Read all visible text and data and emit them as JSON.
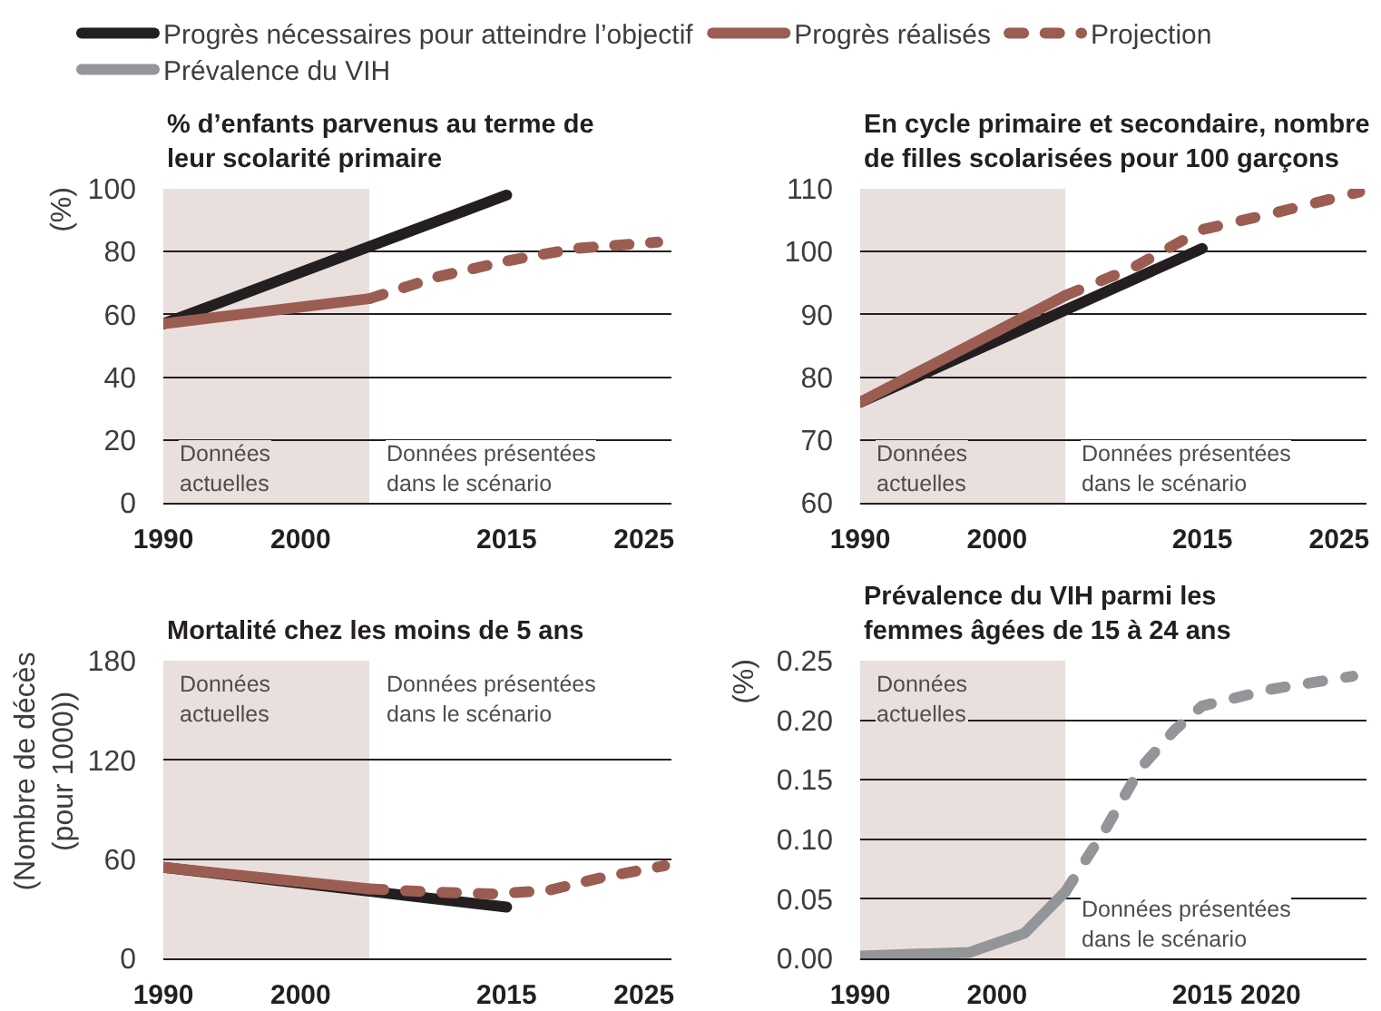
{
  "chart_data": [
    {
      "type": "line",
      "title": "% d’enfants parvenus au terme de\nleur scolarité primaire",
      "ylabel": "(%)",
      "xlim": [
        1990,
        2027
      ],
      "xticks": [
        1990,
        2000,
        2015,
        2025
      ],
      "ylim": [
        0,
        100
      ],
      "yticks": [
        0,
        20,
        40,
        60,
        80,
        100
      ],
      "grid": "y",
      "legend": "top",
      "bands": [
        {
          "axis": "x",
          "from": 1990,
          "to": 2005,
          "color": "#e9e0dd",
          "label": "Données\nactuelles"
        }
      ],
      "annotations": [
        "Données présentées\ndans le scénario"
      ],
      "series": [
        {
          "name": "Progrès nécessaires pour atteindre l’objectif",
          "color": "#231f20",
          "line_style": "solid",
          "x": [
            1990,
            2015
          ],
          "values": [
            57,
            98
          ]
        },
        {
          "name": "Progrès réalisés",
          "color": "#9b5c52",
          "line_style": "solid",
          "x": [
            1990,
            2005
          ],
          "values": [
            57,
            65
          ]
        },
        {
          "name": "Projection",
          "color": "#9b5c52",
          "line_style": "dashed",
          "x": [
            2005,
            2010,
            2015,
            2020,
            2026
          ],
          "values": [
            65,
            72,
            77,
            81,
            83
          ]
        }
      ]
    },
    {
      "type": "line",
      "title": "En cycle primaire et secondaire, nombre\nde filles scolarisées pour 100 garçons",
      "xlim": [
        1990,
        2027
      ],
      "xticks": [
        1990,
        2000,
        2015,
        2025
      ],
      "ylim": [
        60,
        110
      ],
      "yticks": [
        60,
        70,
        80,
        90,
        100,
        110
      ],
      "grid": "y",
      "bands": [
        {
          "axis": "x",
          "from": 1990,
          "to": 2005,
          "color": "#e9e0dd",
          "label": "Données\nactuelles"
        }
      ],
      "annotations": [
        "Données présentées\ndans le scénario"
      ],
      "series": [
        {
          "color": "#231f20",
          "line_style": "solid",
          "x": [
            1990,
            2015
          ],
          "values": [
            76,
            100.5
          ]
        },
        {
          "color": "#9b5c52",
          "line_style": "solid",
          "x": [
            1990,
            2005
          ],
          "values": [
            76,
            93
          ]
        },
        {
          "color": "#9b5c52",
          "line_style": "dashed",
          "x": [
            2005,
            2010,
            2015,
            2020,
            2026.5
          ],
          "values": [
            93,
            97.5,
            103.5,
            106,
            109.5
          ]
        }
      ]
    },
    {
      "type": "line",
      "title": "Mortalité chez les moins de 5 ans",
      "ylabel": "(Nombre de décès\n(pour 1000))",
      "xlim": [
        1990,
        2027
      ],
      "xticks": [
        1990,
        2000,
        2015,
        2025
      ],
      "ylim": [
        0,
        180
      ],
      "yticks": [
        0,
        60,
        120,
        180
      ],
      "grid": "y",
      "bands": [
        {
          "axis": "x",
          "from": 1990,
          "to": 2005,
          "color": "#e9e0dd",
          "label": "Données\nactuelles"
        }
      ],
      "annotations": [
        "Données présentées\ndans le scénario"
      ],
      "series": [
        {
          "color": "#231f20",
          "line_style": "solid",
          "x": [
            1990,
            2015
          ],
          "values": [
            55,
            31
          ]
        },
        {
          "color": "#9b5c52",
          "line_style": "solid",
          "x": [
            1990,
            2005
          ],
          "values": [
            55,
            42
          ]
        },
        {
          "color": "#9b5c52",
          "line_style": "dashed",
          "x": [
            2005,
            2010,
            2014,
            2018,
            2022,
            2026.5
          ],
          "values": [
            42,
            40,
            39,
            41,
            49,
            56
          ]
        }
      ]
    },
    {
      "type": "line",
      "title": "Prévalence du VIH parmi les\nfemmes âgées de 15 à 24 ans",
      "ylabel": "(%)",
      "xlim": [
        1990,
        2027
      ],
      "xticks": [
        1990,
        2000,
        2015,
        2020
      ],
      "ylim": [
        0,
        0.25
      ],
      "yticks": [
        {
          "value": 0,
          "label": "0.00"
        },
        {
          "value": 0.05,
          "label": "0.05"
        },
        {
          "value": 0.1,
          "label": "0.10"
        },
        {
          "value": 0.15,
          "label": "0.15"
        },
        {
          "value": 0.2,
          "label": "0.20"
        },
        {
          "value": 0.25,
          "label": "0.25"
        }
      ],
      "grid": "y",
      "legend": "top",
      "bands": [
        {
          "axis": "x",
          "from": 1990,
          "to": 2005,
          "color": "#e9e0dd",
          "label": "Données\nactuelles"
        }
      ],
      "annotations": [
        "Données présentées\ndans le scénario"
      ],
      "series": [
        {
          "name": "Prévalence du VIH",
          "color": "#939598",
          "line_style": "solid",
          "x": [
            1990,
            1998,
            2002,
            2005
          ],
          "values": [
            0.002,
            0.005,
            0.021,
            0.056
          ]
        },
        {
          "color": "#939598",
          "line_style": "dashed",
          "x": [
            2005,
            2008,
            2010.5,
            2013,
            2015,
            2020,
            2026
          ],
          "values": [
            0.056,
            0.11,
            0.16,
            0.192,
            0.212,
            0.226,
            0.237
          ]
        }
      ]
    }
  ]
}
